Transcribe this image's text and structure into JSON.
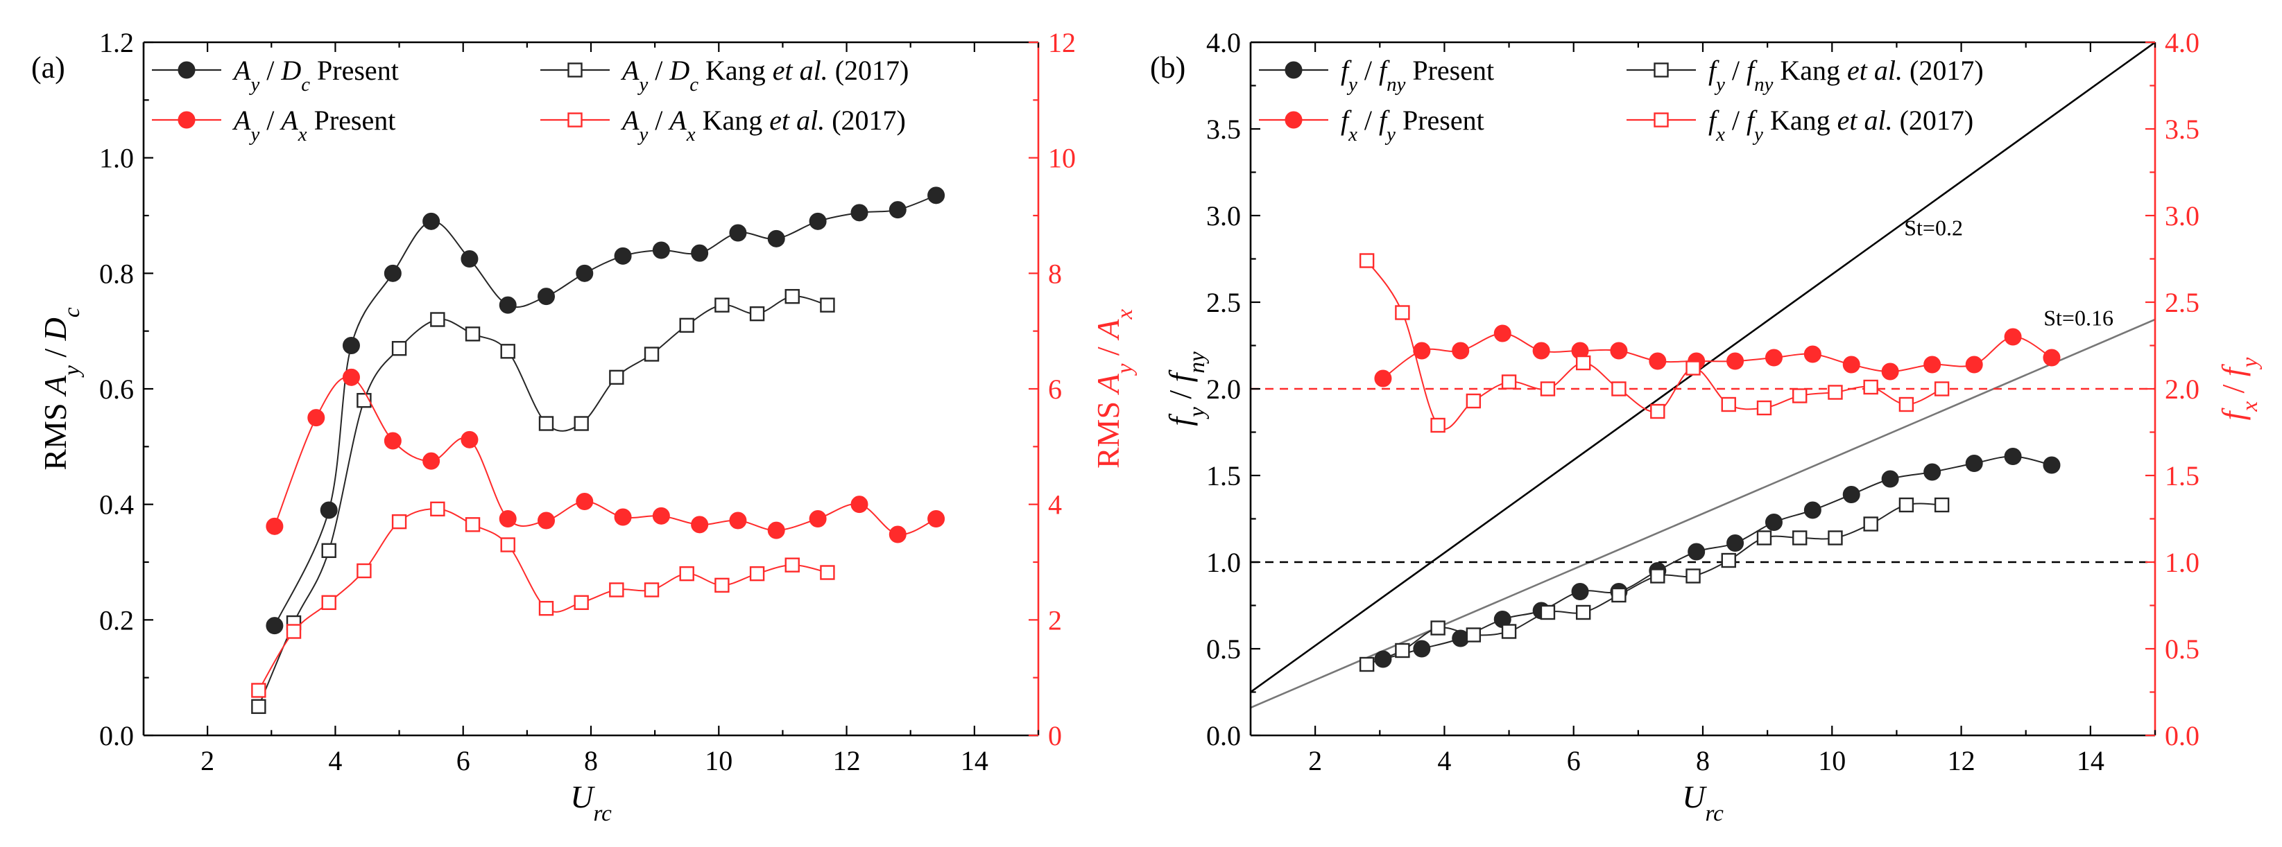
{
  "figure": {
    "panel_a_label": "(a)",
    "panel_b_label": "(b)"
  },
  "colors": {
    "black": "#262626",
    "black_light": "#4a4a4a",
    "red": "#ff2b2b",
    "red_light": "#ff4d4d"
  },
  "chart_data": [
    {
      "id": "a",
      "type": "line",
      "title": "",
      "xlabel": "U_rc",
      "ylabel": "RMS A_y / D_c",
      "y2label": "RMS A_y / A_x",
      "xlim": [
        1,
        15
      ],
      "ylim": [
        0,
        1.2
      ],
      "y2lim": [
        0,
        12
      ],
      "xticks": [
        2,
        4,
        6,
        8,
        10,
        12,
        14
      ],
      "yticks": [
        0.0,
        0.2,
        0.4,
        0.6,
        0.8,
        1.0,
        1.2
      ],
      "y2ticks": [
        0,
        2,
        4,
        6,
        8,
        10,
        12
      ],
      "legend_position": "top-left",
      "series": [
        {
          "name": "A_y / D_c Present",
          "axis": "left",
          "style": "filled-circle",
          "color": "black",
          "x": [
            3.05,
            3.9,
            4.25,
            4.9,
            5.5,
            6.1,
            6.7,
            7.3,
            7.9,
            8.5,
            9.1,
            9.7,
            10.3,
            10.9,
            11.55,
            12.2,
            12.8,
            13.4
          ],
          "y": [
            0.19,
            0.39,
            0.675,
            0.8,
            0.89,
            0.825,
            0.745,
            0.76,
            0.8,
            0.83,
            0.84,
            0.835,
            0.87,
            0.86,
            0.89,
            0.905,
            0.91,
            0.935
          ]
        },
        {
          "name": "A_y / D_c Kang et al. (2017)",
          "axis": "left",
          "style": "open-square",
          "color": "black",
          "x": [
            2.8,
            3.35,
            3.9,
            4.45,
            5.0,
            5.6,
            6.15,
            6.7,
            7.3,
            7.85,
            8.4,
            8.95,
            9.5,
            10.05,
            10.6,
            11.15,
            11.7
          ],
          "y": [
            0.05,
            0.195,
            0.32,
            0.58,
            0.67,
            0.72,
            0.695,
            0.665,
            0.54,
            0.54,
            0.62,
            0.66,
            0.71,
            0.745,
            0.73,
            0.76,
            0.745
          ]
        },
        {
          "name": "A_y / A_x Present",
          "axis": "right",
          "style": "filled-circle",
          "color": "red",
          "x": [
            3.05,
            3.7,
            4.25,
            4.9,
            5.5,
            6.1,
            6.7,
            7.3,
            7.9,
            8.5,
            9.1,
            9.7,
            10.3,
            10.9,
            11.55,
            12.2,
            12.8,
            13.4
          ],
          "y": [
            3.62,
            5.5,
            6.2,
            5.1,
            4.75,
            5.12,
            3.75,
            3.72,
            4.05,
            3.78,
            3.8,
            3.65,
            3.72,
            3.55,
            3.75,
            4.0,
            3.48,
            3.75
          ]
        },
        {
          "name": "A_y / A_x Kang et al. (2017)",
          "axis": "right",
          "style": "open-square",
          "color": "red",
          "x": [
            2.8,
            3.35,
            3.9,
            4.45,
            5.0,
            5.6,
            6.15,
            6.7,
            7.3,
            7.85,
            8.4,
            8.95,
            9.5,
            10.05,
            10.6,
            11.15,
            11.7
          ],
          "y": [
            0.78,
            1.8,
            2.3,
            2.85,
            3.7,
            3.92,
            3.65,
            3.3,
            2.2,
            2.3,
            2.52,
            2.52,
            2.8,
            2.6,
            2.8,
            2.95,
            2.82
          ]
        }
      ],
      "legend": [
        "A_y / D_c Present",
        "A_y / D_c Kang et al. (2017)",
        "A_y / A_x Present",
        "A_y / A_x Kang et al. (2017)"
      ]
    },
    {
      "id": "b",
      "type": "line",
      "title": "",
      "xlabel": "U_rc",
      "ylabel": "f_y / f_ny",
      "y2label": "f_x / f_y",
      "xlim": [
        1,
        15
      ],
      "ylim": [
        0,
        4
      ],
      "y2lim": [
        0,
        4
      ],
      "xticks": [
        2,
        4,
        6,
        8,
        10,
        12,
        14
      ],
      "yticks": [
        0.0,
        0.5,
        1.0,
        1.5,
        2.0,
        2.5,
        3.0,
        3.5,
        4.0
      ],
      "y2ticks": [
        0.0,
        0.5,
        1.0,
        1.5,
        2.0,
        2.5,
        3.0,
        3.5,
        4.0
      ],
      "legend_position": "top-left",
      "series": [
        {
          "name": "f_y / f_ny Present",
          "axis": "left",
          "style": "filled-circle",
          "color": "black",
          "x": [
            3.05,
            3.65,
            4.25,
            4.9,
            5.5,
            6.1,
            6.7,
            7.3,
            7.9,
            8.5,
            9.1,
            9.7,
            10.3,
            10.9,
            11.55,
            12.2,
            12.8,
            13.4
          ],
          "y": [
            0.44,
            0.5,
            0.56,
            0.67,
            0.72,
            0.83,
            0.83,
            0.95,
            1.06,
            1.11,
            1.23,
            1.3,
            1.39,
            1.48,
            1.52,
            1.57,
            1.61,
            1.56
          ]
        },
        {
          "name": "f_y / f_ny Kang et al. (2017)",
          "axis": "left",
          "style": "open-square",
          "color": "black",
          "x": [
            2.8,
            3.35,
            3.9,
            4.45,
            5.0,
            5.6,
            6.15,
            6.7,
            7.3,
            7.85,
            8.4,
            8.95,
            9.5,
            10.05,
            10.6,
            11.15,
            11.7
          ],
          "y": [
            0.41,
            0.49,
            0.62,
            0.58,
            0.6,
            0.71,
            0.71,
            0.81,
            0.92,
            0.92,
            1.01,
            1.14,
            1.14,
            1.14,
            1.22,
            1.33,
            1.33
          ]
        },
        {
          "name": "f_x / f_y Present",
          "axis": "right",
          "style": "filled-circle",
          "color": "red",
          "x": [
            3.05,
            3.65,
            4.25,
            4.9,
            5.5,
            6.1,
            6.7,
            7.3,
            7.9,
            8.5,
            9.1,
            9.7,
            10.3,
            10.9,
            11.55,
            12.2,
            12.8,
            13.4
          ],
          "y": [
            2.06,
            2.22,
            2.22,
            2.32,
            2.22,
            2.22,
            2.22,
            2.16,
            2.16,
            2.16,
            2.18,
            2.2,
            2.14,
            2.1,
            2.14,
            2.14,
            2.3,
            2.18
          ]
        },
        {
          "name": "f_x / f_y Kang et al. (2017)",
          "axis": "right",
          "style": "open-square",
          "color": "red",
          "x": [
            2.8,
            3.35,
            3.9,
            4.45,
            5.0,
            5.6,
            6.15,
            6.7,
            7.3,
            7.85,
            8.4,
            8.95,
            9.5,
            10.05,
            10.6,
            11.15,
            11.7
          ],
          "y": [
            2.74,
            2.44,
            1.79,
            1.93,
            2.04,
            2.0,
            2.15,
            2.0,
            1.87,
            2.12,
            1.91,
            1.89,
            1.96,
            1.98,
            2.01,
            1.91,
            2.0
          ]
        }
      ],
      "reference_lines": [
        {
          "label": "St=0.2",
          "kind": "line",
          "x1": 1,
          "y1": 0.25,
          "x2": 15,
          "y2": 4.0,
          "color": "black"
        },
        {
          "label": "St=0.16",
          "kind": "line",
          "x1": 1,
          "y1": 0.16,
          "x2": 15,
          "y2": 2.4,
          "color": "gray"
        },
        {
          "label": "",
          "kind": "hline-dashed",
          "y": 1.0,
          "axis": "left",
          "color": "black"
        },
        {
          "label": "",
          "kind": "hline-dashed",
          "y": 2.0,
          "axis": "right",
          "color": "red"
        }
      ],
      "legend": [
        "f_y / f_ny Present",
        "f_y / f_ny Kang et al. (2017)",
        "f_x / f_y Present",
        "f_x / f_y Kang et al. (2017)"
      ]
    }
  ]
}
